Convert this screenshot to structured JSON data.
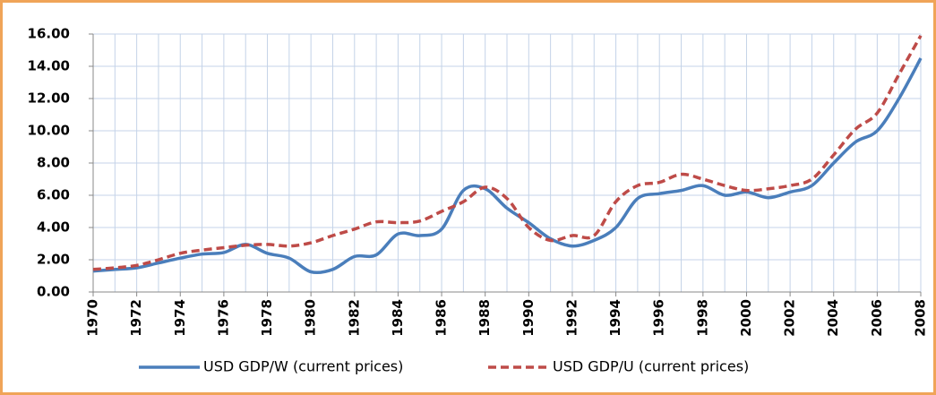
{
  "chart_data": {
    "type": "line",
    "x": [
      1970,
      1971,
      1972,
      1973,
      1974,
      1975,
      1976,
      1977,
      1978,
      1979,
      1980,
      1981,
      1982,
      1983,
      1984,
      1985,
      1986,
      1987,
      1988,
      1989,
      1990,
      1991,
      1992,
      1993,
      1994,
      1995,
      1996,
      1997,
      1998,
      1999,
      2000,
      2001,
      2002,
      2003,
      2004,
      2005,
      2006,
      2007,
      2008
    ],
    "series": [
      {
        "name": "USD GDP/W (current prices)",
        "color": "#4a7ebb",
        "dash": false,
        "values": [
          1.3,
          1.4,
          1.5,
          1.8,
          2.1,
          2.35,
          2.45,
          2.95,
          2.4,
          2.1,
          1.25,
          1.4,
          2.2,
          2.3,
          3.6,
          3.5,
          3.9,
          6.3,
          6.4,
          5.2,
          4.3,
          3.3,
          2.85,
          3.2,
          4.0,
          5.8,
          6.1,
          6.3,
          6.6,
          6.0,
          6.2,
          5.85,
          6.2,
          6.6,
          8.0,
          9.3,
          10.0,
          12.0,
          14.5
        ]
      },
      {
        "name": "USD GDP/U (current prices)",
        "color": "#be4b48",
        "dash": true,
        "values": [
          1.4,
          1.5,
          1.65,
          2.0,
          2.4,
          2.6,
          2.75,
          2.9,
          2.95,
          2.85,
          3.05,
          3.5,
          3.9,
          4.35,
          4.3,
          4.4,
          5.0,
          5.6,
          6.5,
          5.8,
          4.0,
          3.2,
          3.5,
          3.5,
          5.6,
          6.6,
          6.8,
          7.3,
          7.0,
          6.6,
          6.3,
          6.4,
          6.6,
          7.0,
          8.5,
          10.1,
          11.1,
          13.5,
          15.9
        ]
      }
    ],
    "xlim": [
      1970,
      2008
    ],
    "xticks": [
      1970,
      1972,
      1974,
      1976,
      1978,
      1980,
      1982,
      1984,
      1986,
      1988,
      1990,
      1992,
      1994,
      1996,
      1998,
      2000,
      2002,
      2004,
      2006,
      2008
    ],
    "ylim": [
      0,
      16
    ],
    "yticks": [
      {
        "value": 0,
        "label": "0.00"
      },
      {
        "value": 2,
        "label": "2.00"
      },
      {
        "value": 4,
        "label": "4.00"
      },
      {
        "value": 6,
        "label": "6.00"
      },
      {
        "value": 8,
        "label": "8.00"
      },
      {
        "value": 10,
        "label": "10.00"
      },
      {
        "value": 12,
        "label": "12.00"
      },
      {
        "value": 14,
        "label": "14.00"
      },
      {
        "value": 16,
        "label": "16.00"
      }
    ],
    "grid": true,
    "legend": "bottom"
  }
}
